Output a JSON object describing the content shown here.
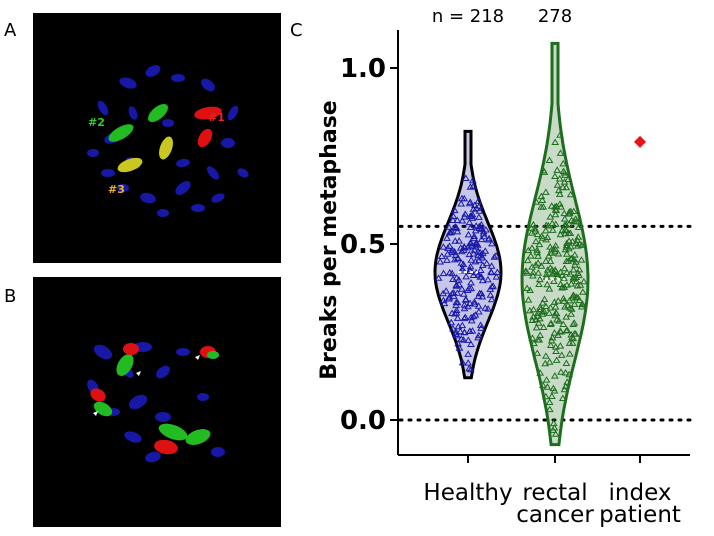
{
  "panels": {
    "a": {
      "letter": "A",
      "labels": [
        "#2",
        "#1",
        "#3"
      ],
      "label_colors": [
        "#33cc33",
        "#ee2222",
        "#f0b020"
      ]
    },
    "b": {
      "letter": "B"
    },
    "c": {
      "letter": "C"
    }
  },
  "chart_data": {
    "type": "violin",
    "ylabel": "Breaks per metaphase",
    "ylim": [
      -0.1,
      1.1
    ],
    "yticks": [
      0.0,
      0.5,
      1.0
    ],
    "ytick_labels": [
      "0.0",
      "0.5",
      "1.0"
    ],
    "reference_lines": [
      0.0,
      0.55
    ],
    "categories": [
      {
        "line1": "Healthy",
        "line2": ""
      },
      {
        "line1": "rectal",
        "line2": "cancer"
      },
      {
        "line1": "index",
        "line2": "patient"
      }
    ],
    "n_labels": [
      "n = 218",
      "278",
      ""
    ],
    "series": [
      {
        "color": "#1a1aa8",
        "edge": "#000000",
        "n": 218,
        "min": 0.12,
        "max": 0.82,
        "median": 0.42
      },
      {
        "color": "#1e6e1e",
        "edge": "#1e6e1e",
        "n": 278,
        "min": -0.07,
        "max": 1.07,
        "median": 0.4
      },
      {
        "color": "#ee1111",
        "value": 0.79
      }
    ]
  }
}
